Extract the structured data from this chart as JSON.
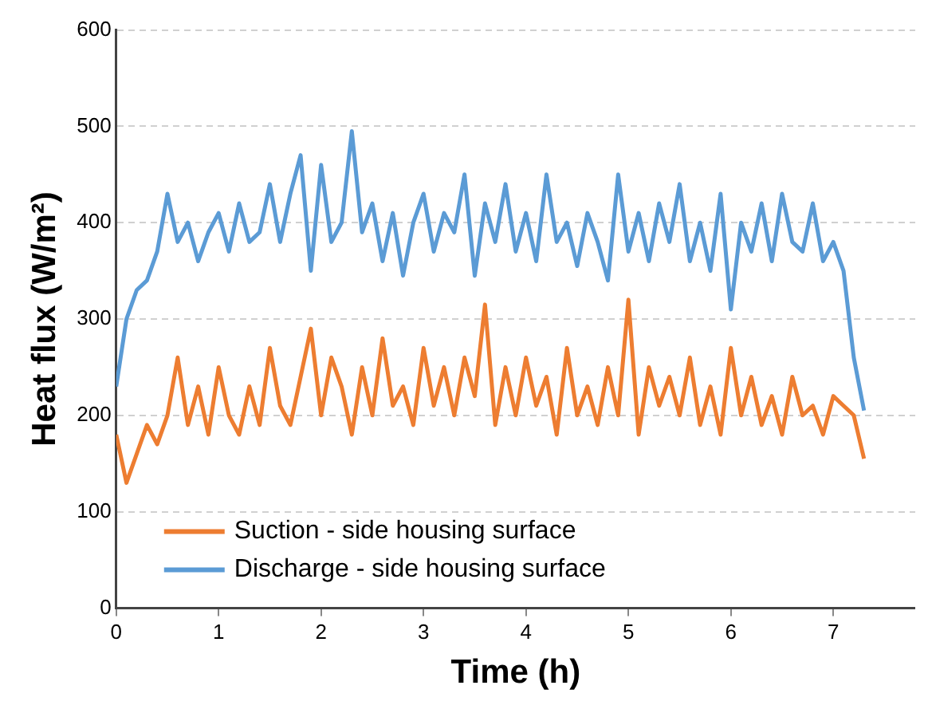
{
  "chart_data": {
    "type": "line",
    "xlabel": "Time (h)",
    "ylabel": "Heat flux (W/m²)",
    "xlim": [
      0,
      7.8
    ],
    "xticks": [
      0,
      1,
      2,
      3,
      4,
      5,
      6,
      7
    ],
    "ylim": [
      0,
      600
    ],
    "yticks": [
      0,
      100,
      200,
      300,
      400,
      500,
      600
    ],
    "grid": "y",
    "legend": "bottom left",
    "marker": "none",
    "line_style": "solid",
    "x": [
      0,
      0.1,
      0.2,
      0.3,
      0.4,
      0.5,
      0.6,
      0.7,
      0.8,
      0.9,
      1,
      1.1,
      1.2,
      1.3,
      1.4,
      1.5,
      1.6,
      1.7,
      1.8,
      1.9,
      2,
      2.1,
      2.2,
      2.3,
      2.4,
      2.5,
      2.6,
      2.7,
      2.8,
      2.9,
      3,
      3.1,
      3.2,
      3.3,
      3.4,
      3.5,
      3.6,
      3.7,
      3.8,
      3.9,
      4,
      4.1,
      4.2,
      4.3,
      4.4,
      4.5,
      4.6,
      4.7,
      4.8,
      4.9,
      5,
      5.1,
      5.2,
      5.3,
      5.4,
      5.5,
      5.6,
      5.7,
      5.8,
      5.9,
      6,
      6.1,
      6.2,
      6.3,
      6.4,
      6.5,
      6.6,
      6.7,
      6.8,
      6.9,
      7,
      7.1,
      7.2,
      7.3
    ],
    "series": [
      {
        "name": "Suction - side housing surface",
        "color": "#ed7d31",
        "values": [
          180,
          130,
          160,
          190,
          170,
          200,
          260,
          190,
          230,
          180,
          250,
          200,
          180,
          230,
          190,
          270,
          210,
          190,
          240,
          290,
          200,
          260,
          230,
          180,
          250,
          200,
          280,
          210,
          230,
          190,
          270,
          210,
          250,
          200,
          260,
          220,
          315,
          190,
          250,
          200,
          260,
          210,
          240,
          180,
          270,
          200,
          230,
          190,
          250,
          200,
          320,
          180,
          250,
          210,
          240,
          200,
          260,
          190,
          230,
          180,
          270,
          200,
          240,
          190,
          220,
          180,
          240,
          200,
          210,
          180,
          220,
          210,
          200,
          155
        ]
      },
      {
        "name": "Discharge - side housing surface",
        "color": "#5b9bd5",
        "values": [
          230,
          300,
          330,
          340,
          370,
          430,
          380,
          400,
          360,
          390,
          410,
          370,
          420,
          380,
          390,
          440,
          380,
          430,
          470,
          350,
          460,
          380,
          400,
          495,
          390,
          420,
          360,
          410,
          345,
          400,
          430,
          370,
          410,
          390,
          450,
          345,
          420,
          380,
          440,
          370,
          410,
          360,
          450,
          380,
          400,
          355,
          410,
          380,
          340,
          450,
          370,
          410,
          360,
          420,
          380,
          440,
          360,
          400,
          350,
          430,
          310,
          400,
          370,
          420,
          360,
          430,
          380,
          370,
          420,
          360,
          380,
          350,
          260,
          205
        ]
      }
    ]
  }
}
